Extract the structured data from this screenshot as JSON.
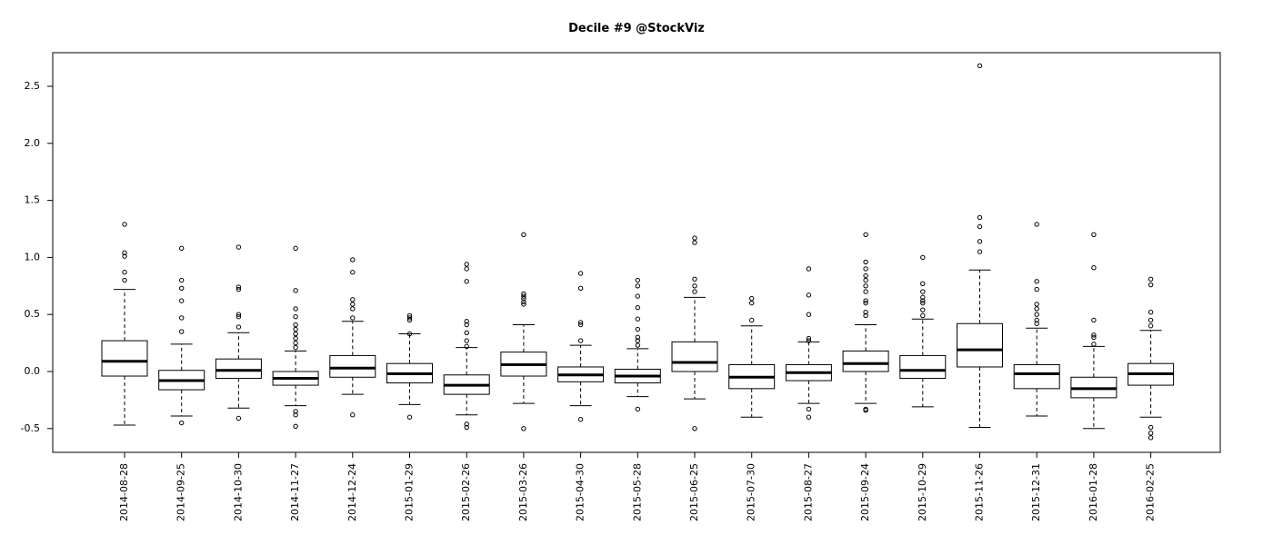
{
  "chart_data": {
    "type": "box",
    "title": "Decile #9 @StockViz",
    "xlabel": "",
    "ylabel": "",
    "ylim": [
      -0.7,
      2.8
    ],
    "y_ticks": [
      {
        "value": -0.5,
        "label": "-0.5"
      },
      {
        "value": 0.0,
        "label": "0.0"
      },
      {
        "value": 0.5,
        "label": "0.5"
      },
      {
        "value": 1.0,
        "label": "1.0"
      },
      {
        "value": 1.5,
        "label": "1.5"
      },
      {
        "value": 2.0,
        "label": "2.0"
      },
      {
        "value": 2.5,
        "label": "2.5"
      }
    ],
    "categories": [
      "2014-08-28",
      "2014-09-25",
      "2014-10-30",
      "2014-11-27",
      "2014-12-24",
      "2015-01-29",
      "2015-02-26",
      "2015-03-26",
      "2015-04-30",
      "2015-05-28",
      "2015-06-25",
      "2015-07-30",
      "2015-08-27",
      "2015-09-24",
      "2015-10-29",
      "2015-11-26",
      "2015-12-31",
      "2016-01-28",
      "2016-02-25"
    ],
    "boxes": [
      {
        "whisker_low": -0.47,
        "q1": -0.04,
        "median": 0.09,
        "q3": 0.27,
        "whisker_high": 0.72,
        "outliers": [
          0.8,
          0.87,
          1.01,
          1.04,
          1.29
        ]
      },
      {
        "whisker_low": -0.39,
        "q1": -0.16,
        "median": -0.08,
        "q3": 0.01,
        "whisker_high": 0.24,
        "outliers": [
          -0.45,
          0.35,
          0.47,
          0.62,
          0.73,
          0.8,
          1.08
        ]
      },
      {
        "whisker_low": -0.32,
        "q1": -0.06,
        "median": 0.01,
        "q3": 0.11,
        "whisker_high": 0.34,
        "outliers": [
          -0.41,
          0.39,
          0.48,
          0.5,
          0.72,
          0.74,
          1.09
        ]
      },
      {
        "whisker_low": -0.3,
        "q1": -0.12,
        "median": -0.06,
        "q3": 0.0,
        "whisker_high": 0.18,
        "outliers": [
          -0.35,
          -0.38,
          -0.48,
          0.21,
          0.25,
          0.29,
          0.33,
          0.37,
          0.41,
          0.48,
          0.55,
          0.71,
          1.08
        ]
      },
      {
        "whisker_low": -0.2,
        "q1": -0.05,
        "median": 0.03,
        "q3": 0.14,
        "whisker_high": 0.44,
        "outliers": [
          -0.38,
          0.47,
          0.55,
          0.59,
          0.63,
          0.87,
          0.98
        ]
      },
      {
        "whisker_low": -0.29,
        "q1": -0.1,
        "median": -0.02,
        "q3": 0.07,
        "whisker_high": 0.33,
        "outliers": [
          -0.4,
          0.33,
          0.45,
          0.47,
          0.49
        ]
      },
      {
        "whisker_low": -0.38,
        "q1": -0.2,
        "median": -0.12,
        "q3": -0.03,
        "whisker_high": 0.21,
        "outliers": [
          -0.46,
          -0.49,
          0.22,
          0.27,
          0.34,
          0.41,
          0.44,
          0.79,
          0.9,
          0.94
        ]
      },
      {
        "whisker_low": -0.28,
        "q1": -0.04,
        "median": 0.06,
        "q3": 0.17,
        "whisker_high": 0.41,
        "outliers": [
          -0.5,
          0.59,
          0.61,
          0.64,
          0.66,
          0.68,
          1.2
        ]
      },
      {
        "whisker_low": -0.3,
        "q1": -0.09,
        "median": -0.03,
        "q3": 0.04,
        "whisker_high": 0.23,
        "outliers": [
          -0.42,
          0.27,
          0.41,
          0.43,
          0.73,
          0.86
        ]
      },
      {
        "whisker_low": -0.22,
        "q1": -0.1,
        "median": -0.04,
        "q3": 0.02,
        "whisker_high": 0.2,
        "outliers": [
          -0.33,
          0.23,
          0.27,
          0.3,
          0.37,
          0.46,
          0.56,
          0.66,
          0.75,
          0.8
        ]
      },
      {
        "whisker_low": -0.24,
        "q1": 0.0,
        "median": 0.08,
        "q3": 0.26,
        "whisker_high": 0.65,
        "outliers": [
          -0.5,
          0.7,
          0.75,
          0.81,
          1.13,
          1.17
        ]
      },
      {
        "whisker_low": -0.4,
        "q1": -0.15,
        "median": -0.05,
        "q3": 0.06,
        "whisker_high": 0.4,
        "outliers": [
          0.45,
          0.6,
          0.64
        ]
      },
      {
        "whisker_low": -0.28,
        "q1": -0.08,
        "median": -0.01,
        "q3": 0.06,
        "whisker_high": 0.26,
        "outliers": [
          -0.33,
          -0.4,
          0.27,
          0.29,
          0.5,
          0.67,
          0.9
        ]
      },
      {
        "whisker_low": -0.28,
        "q1": 0.0,
        "median": 0.07,
        "q3": 0.18,
        "whisker_high": 0.41,
        "outliers": [
          -0.33,
          -0.34,
          0.49,
          0.52,
          0.6,
          0.62,
          0.7,
          0.75,
          0.8,
          0.84,
          0.9,
          0.96,
          1.2
        ]
      },
      {
        "whisker_low": -0.31,
        "q1": -0.06,
        "median": 0.01,
        "q3": 0.14,
        "whisker_high": 0.46,
        "outliers": [
          0.49,
          0.54,
          0.6,
          0.62,
          0.65,
          0.7,
          0.77,
          1.0
        ]
      },
      {
        "whisker_low": -0.49,
        "q1": 0.04,
        "median": 0.19,
        "q3": 0.42,
        "whisker_high": 0.89,
        "outliers": [
          1.05,
          1.14,
          1.27,
          1.35,
          2.68
        ]
      },
      {
        "whisker_low": -0.39,
        "q1": -0.15,
        "median": -0.02,
        "q3": 0.06,
        "whisker_high": 0.38,
        "outliers": [
          0.42,
          0.45,
          0.5,
          0.55,
          0.59,
          0.72,
          0.79,
          1.29
        ]
      },
      {
        "whisker_low": -0.5,
        "q1": -0.23,
        "median": -0.15,
        "q3": -0.05,
        "whisker_high": 0.22,
        "outliers": [
          0.24,
          0.3,
          0.32,
          0.45,
          0.91,
          1.2
        ]
      },
      {
        "whisker_low": -0.4,
        "q1": -0.12,
        "median": -0.02,
        "q3": 0.07,
        "whisker_high": 0.36,
        "outliers": [
          -0.49,
          -0.54,
          -0.58,
          0.4,
          0.45,
          0.52,
          0.76,
          0.81
        ]
      }
    ],
    "grid": false,
    "legend": "none"
  }
}
